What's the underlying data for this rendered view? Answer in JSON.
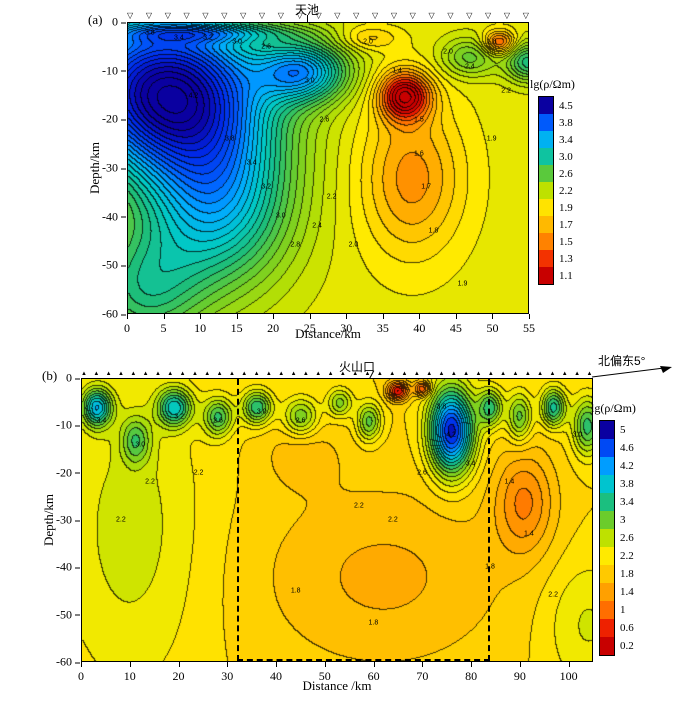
{
  "chart_data": [
    {
      "type": "heatmap",
      "panel_label": "(a)",
      "annotation": "天池",
      "xlabel": "Distance/km",
      "ylabel": "Depth/km",
      "xlim": [
        0,
        55
      ],
      "ylim": [
        -60,
        0
      ],
      "xticks": [
        0,
        5,
        10,
        15,
        20,
        25,
        30,
        35,
        40,
        45,
        50,
        55
      ],
      "yticks": [
        0,
        -10,
        -20,
        -30,
        -40,
        -50,
        -60
      ],
      "colorbar": {
        "title": "lg(ρ/Ωm)",
        "ticks": [
          "4.5",
          "3.8",
          "3.4",
          "3.0",
          "2.6",
          "2.2",
          "1.9",
          "1.7",
          "1.5",
          "1.3",
          "1.1"
        ]
      },
      "stations": {
        "marker": "▽",
        "count": 22
      },
      "contour_interval": 0.1,
      "field": {
        "background": 2.05,
        "anomalies": [
          {
            "x": 5,
            "z": 14,
            "sx": 13,
            "sz": 16,
            "amp": 2.5
          },
          {
            "x": 12,
            "z": 36,
            "sx": 10,
            "sz": 18,
            "amp": 1.3
          },
          {
            "x": 2,
            "z": 55,
            "sx": 8,
            "sz": 12,
            "amp": 0.7
          },
          {
            "x": 24,
            "z": 10,
            "sx": 6,
            "sz": 6,
            "amp": 1.3
          },
          {
            "x": 38,
            "z": 15,
            "sx": 3.5,
            "sz": 5,
            "amp": -1.05
          },
          {
            "x": 39,
            "z": 32,
            "sx": 7,
            "sz": 16,
            "amp": -0.5
          },
          {
            "x": 51,
            "z": 4,
            "sx": 2.2,
            "sz": 2.5,
            "amp": -0.75
          },
          {
            "x": 47,
            "z": 7,
            "sx": 4,
            "sz": 4,
            "amp": 0.5
          },
          {
            "x": 33,
            "z": 3,
            "sx": 4,
            "sz": 2.5,
            "amp": -0.3
          },
          {
            "x": 10,
            "z": 2,
            "sx": 12,
            "sz": 2,
            "amp": 0.6
          },
          {
            "x": 55,
            "z": 8,
            "sx": 3,
            "sz": 4,
            "amp": 0.8
          }
        ]
      },
      "contour_labels": [
        {
          "x": 3,
          "y": -2,
          "text": "3.8"
        },
        {
          "x": 7,
          "y": -3,
          "text": "3.4"
        },
        {
          "x": 11,
          "y": -3,
          "text": "3.2"
        },
        {
          "x": 15,
          "y": -4,
          "text": "3.0"
        },
        {
          "x": 19,
          "y": -5,
          "text": "2.6"
        },
        {
          "x": 33,
          "y": -4,
          "text": "2.0"
        },
        {
          "x": 44,
          "y": -6,
          "text": "2.0"
        },
        {
          "x": 50,
          "y": -4,
          "text": "1.8"
        },
        {
          "x": 9,
          "y": -15,
          "text": "4.2"
        },
        {
          "x": 14,
          "y": -24,
          "text": "3.8"
        },
        {
          "x": 17,
          "y": -29,
          "text": "3.4"
        },
        {
          "x": 19,
          "y": -34,
          "text": "3.2"
        },
        {
          "x": 21,
          "y": -40,
          "text": "3.0"
        },
        {
          "x": 23,
          "y": -46,
          "text": "2.8"
        },
        {
          "x": 26,
          "y": -42,
          "text": "2.4"
        },
        {
          "x": 28,
          "y": -36,
          "text": "2.2"
        },
        {
          "x": 31,
          "y": -46,
          "text": "2.0"
        },
        {
          "x": 25,
          "y": -12,
          "text": "3.0"
        },
        {
          "x": 27,
          "y": -20,
          "text": "2.6"
        },
        {
          "x": 37,
          "y": -10,
          "text": "1.4"
        },
        {
          "x": 40,
          "y": -20,
          "text": "1.5"
        },
        {
          "x": 40,
          "y": -27,
          "text": "1.6"
        },
        {
          "x": 41,
          "y": -34,
          "text": "1.7"
        },
        {
          "x": 42,
          "y": -43,
          "text": "1.8"
        },
        {
          "x": 46,
          "y": -54,
          "text": "1.9"
        },
        {
          "x": 47,
          "y": -9,
          "text": "2.4"
        },
        {
          "x": 52,
          "y": -14,
          "text": "2.2"
        },
        {
          "x": 50,
          "y": -24,
          "text": "1.9"
        }
      ]
    },
    {
      "type": "heatmap",
      "panel_label": "(b)",
      "annotations": {
        "crater": "火山口",
        "bearing": "北偏东5°"
      },
      "xlabel": "Distance /km",
      "ylabel": "Depth/km",
      "xlim": [
        0,
        105
      ],
      "ylim": [
        -60,
        0
      ],
      "xticks": [
        0,
        10,
        20,
        30,
        40,
        50,
        60,
        70,
        80,
        90,
        100
      ],
      "yticks": [
        0,
        -10,
        -20,
        -30,
        -40,
        -50,
        -60
      ],
      "colorbar": {
        "title": "lg(ρ/Ωm)",
        "ticks": [
          "5",
          "4.6",
          "4.2",
          "3.8",
          "3.4",
          "3",
          "2.6",
          "2.2",
          "1.8",
          "1.4",
          "1",
          "0.6",
          "0.2"
        ]
      },
      "stations": {
        "marker": "▲",
        "count": 42
      },
      "contour_interval": 0.2,
      "dashed_box": {
        "x0": 32,
        "x1": 84
      },
      "field": {
        "background": 2.0,
        "anomalies": [
          {
            "x": 10,
            "z": 32,
            "sx": 15,
            "sz": 34,
            "amp": 0.5
          },
          {
            "x": 3,
            "z": 6,
            "sx": 3,
            "sz": 4,
            "amp": 1.8
          },
          {
            "x": 11,
            "z": 13,
            "sx": 3,
            "sz": 5,
            "amp": 0.9
          },
          {
            "x": 19,
            "z": 6,
            "sx": 3.5,
            "sz": 4,
            "amp": 1.6
          },
          {
            "x": 28,
            "z": 8,
            "sx": 3,
            "sz": 4,
            "amp": 1.2
          },
          {
            "x": 36,
            "z": 6,
            "sx": 3,
            "sz": 3.5,
            "amp": 1.4
          },
          {
            "x": 45,
            "z": 8,
            "sx": 3.5,
            "sz": 4,
            "amp": 1.0
          },
          {
            "x": 53,
            "z": 5,
            "sx": 2.5,
            "sz": 3,
            "amp": 0.9
          },
          {
            "x": 59,
            "z": 9,
            "sx": 2.5,
            "sz": 4,
            "amp": 1.1
          },
          {
            "x": 65,
            "z": 2.5,
            "sx": 2.2,
            "sz": 2,
            "amp": -1.6
          },
          {
            "x": 70,
            "z": 2,
            "sx": 1.6,
            "sz": 1.6,
            "amp": -1.3
          },
          {
            "x": 76,
            "z": 11,
            "sx": 4.5,
            "sz": 9,
            "amp": 2.9
          },
          {
            "x": 84,
            "z": 6,
            "sx": 2.5,
            "sz": 4,
            "amp": 1.3
          },
          {
            "x": 90,
            "z": 8,
            "sx": 2.5,
            "sz": 5,
            "amp": 1.1
          },
          {
            "x": 97,
            "z": 6,
            "sx": 2.5,
            "sz": 4,
            "amp": 1.5
          },
          {
            "x": 104,
            "z": 10,
            "sx": 3,
            "sz": 6,
            "amp": 1.3
          },
          {
            "x": 91,
            "z": 26,
            "sx": 6,
            "sz": 11,
            "amp": -0.8
          },
          {
            "x": 62,
            "z": 42,
            "sx": 26,
            "sz": 20,
            "amp": -0.45
          },
          {
            "x": 45,
            "z": 16,
            "sx": 8,
            "sz": 7,
            "amp": -0.3
          },
          {
            "x": 104,
            "z": 52,
            "sx": 9,
            "sz": 14,
            "amp": 0.45
          }
        ]
      },
      "contour_labels": [
        {
          "x": 4,
          "y": -9,
          "text": "3.4"
        },
        {
          "x": 12,
          "y": -14,
          "text": "3.0"
        },
        {
          "x": 20,
          "y": -8,
          "text": "3.2"
        },
        {
          "x": 28,
          "y": -9,
          "text": "2.6"
        },
        {
          "x": 37,
          "y": -7,
          "text": "3.0"
        },
        {
          "x": 45,
          "y": -9,
          "text": "2.6"
        },
        {
          "x": 14,
          "y": -22,
          "text": "2.2"
        },
        {
          "x": 24,
          "y": -20,
          "text": "2.2"
        },
        {
          "x": 8,
          "y": -30,
          "text": "2.2"
        },
        {
          "x": 74,
          "y": -6,
          "text": "3.8"
        },
        {
          "x": 76,
          "y": -12,
          "text": "4.2"
        },
        {
          "x": 80,
          "y": -18,
          "text": "3.4"
        },
        {
          "x": 70,
          "y": -20,
          "text": "2.6"
        },
        {
          "x": 57,
          "y": -27,
          "text": "2.2"
        },
        {
          "x": 64,
          "y": -30,
          "text": "2.2"
        },
        {
          "x": 88,
          "y": -22,
          "text": "1.4"
        },
        {
          "x": 92,
          "y": -33,
          "text": "1.4"
        },
        {
          "x": 84,
          "y": -40,
          "text": "1.8"
        },
        {
          "x": 60,
          "y": -52,
          "text": "1.8"
        },
        {
          "x": 44,
          "y": -45,
          "text": "1.8"
        },
        {
          "x": 97,
          "y": -46,
          "text": "2.2"
        },
        {
          "x": 102,
          "y": -12,
          "text": "3.0"
        }
      ]
    }
  ]
}
